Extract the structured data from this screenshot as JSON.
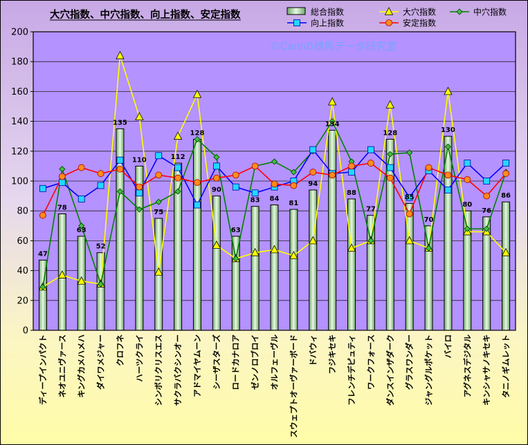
{
  "chart_data": {
    "type": "bar",
    "title": "大穴指数、中穴指数、向上指数、安定指数",
    "watermark": "©Caniの競馬データ研究室",
    "ylim": [
      0,
      200
    ],
    "yticks": [
      0,
      20,
      40,
      60,
      80,
      100,
      120,
      140,
      160,
      180,
      200
    ],
    "grid": "horizontal",
    "legend_position": "top-right",
    "categories": [
      "ディープインパクト",
      "ネオユニヴァース",
      "キングカメハメハ",
      "ダイワメジャー",
      "クロフネ",
      "ハーツクライ",
      "シンボリクリスエス",
      "サクラバクシンオー",
      "アドマイヤムーン",
      "シーザスターズ",
      "ロードカナロア",
      "ゼンノロブロイ",
      "オルフェーヴル",
      "スウェプトオーヴァーボード",
      "ドバウィ",
      "フジキセキ",
      "フレンチデピュティ",
      "ワークフォース",
      "ダンスインザダーク",
      "グラスワンダー",
      "ジャングルポケット",
      "バイロ",
      "アグネスデジタル",
      "キンシャサノキセキ",
      "タニノギムレット"
    ],
    "series": [
      {
        "name": "総合指数",
        "kind": "bar",
        "color": "#a8dca0",
        "values": [
          47,
          78,
          63,
          52,
          135,
          110,
          75,
          112,
          128,
          90,
          63,
          83,
          84,
          81,
          94,
          134,
          88,
          77,
          128,
          85,
          70,
          130,
          80,
          76,
          86
        ]
      },
      {
        "name": "大穴指数",
        "kind": "line",
        "color": "#ffff00",
        "marker": "triangle",
        "values": [
          29,
          37,
          33,
          31,
          184,
          143,
          39,
          130,
          158,
          57,
          48,
          52,
          54,
          50,
          60,
          153,
          55,
          60,
          151,
          60,
          55,
          160,
          66,
          66,
          52
        ]
      },
      {
        "name": "中穴指数",
        "kind": "line",
        "color": "#008000",
        "marker": "diamond",
        "values": [
          29,
          108,
          70,
          31,
          93,
          81,
          86,
          93,
          128,
          116,
          48,
          110,
          113,
          106,
          120,
          140,
          113,
          60,
          118,
          119,
          55,
          123,
          68,
          68,
          106
        ]
      },
      {
        "name": "向上指数",
        "kind": "line",
        "color": "#0000ff",
        "marker": "square",
        "values": [
          95,
          99,
          88,
          97,
          114,
          92,
          117,
          109,
          84,
          110,
          96,
          92,
          96,
          100,
          121,
          105,
          106,
          121,
          109,
          89,
          107,
          94,
          112,
          100,
          112
        ]
      },
      {
        "name": "安定指数",
        "kind": "line",
        "color": "#ff0000",
        "marker": "circle",
        "values": [
          77,
          103,
          109,
          105,
          108,
          96,
          104,
          102,
          99,
          102,
          104,
          110,
          98,
          97,
          106,
          104,
          110,
          112,
          102,
          78,
          109,
          104,
          101,
          90,
          105
        ]
      }
    ]
  }
}
